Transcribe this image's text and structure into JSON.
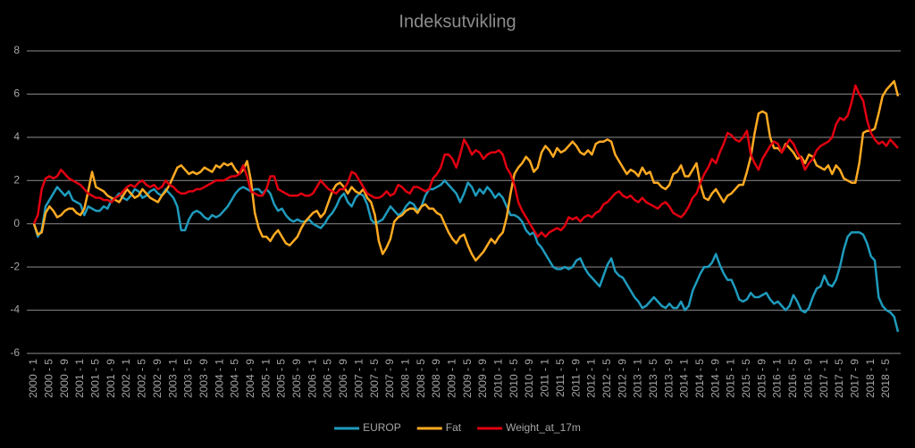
{
  "chart_data": {
    "type": "line",
    "title": "Indeksutvikling",
    "categories": [
      "2000 - 1",
      null,
      null,
      null,
      "2000 - 5",
      null,
      null,
      null,
      "2000 - 9",
      null,
      null,
      null,
      "2001 - 1",
      null,
      null,
      null,
      "2001 - 5",
      null,
      null,
      null,
      "2001 - 9",
      null,
      null,
      null,
      "2002 - 1",
      null,
      null,
      null,
      "2002 - 5",
      null,
      null,
      null,
      "2002 - 9",
      null,
      null,
      null,
      "2003 - 1",
      null,
      null,
      null,
      "2003 - 5",
      null,
      null,
      null,
      "2003 - 9",
      null,
      null,
      null,
      "2004 - 1",
      null,
      null,
      null,
      "2004 - 5",
      null,
      null,
      null,
      "2004 - 9",
      null,
      null,
      null,
      "2005 - 1",
      null,
      null,
      null,
      "2005 - 5",
      null,
      null,
      null,
      "2005 - 9",
      null,
      null,
      null,
      "2006 - 1",
      null,
      null,
      null,
      "2006 - 5",
      null,
      null,
      null,
      "2006 - 9",
      null,
      null,
      null,
      "2007 - 1",
      null,
      null,
      null,
      "2007 - 5",
      null,
      null,
      null,
      "2007 - 9",
      null,
      null,
      null,
      "2008 - 1",
      null,
      null,
      null,
      "2008 - 5",
      null,
      null,
      null,
      "2008 - 9",
      null,
      null,
      null,
      "2009 - 1",
      null,
      null,
      null,
      "2009 - 5",
      null,
      null,
      null,
      "2009 - 9",
      null,
      null,
      null,
      "2010 - 1",
      null,
      null,
      null,
      "2010 - 5",
      null,
      null,
      null,
      "2010 - 9",
      null,
      null,
      null,
      "2011 - 1",
      null,
      null,
      null,
      "2011 - 5",
      null,
      null,
      null,
      "2011 - 9",
      null,
      null,
      null,
      "2012 - 1",
      null,
      null,
      null,
      "2012 - 5",
      null,
      null,
      null,
      "2012 - 9",
      null,
      null,
      null,
      "2013 - 1",
      null,
      null,
      null,
      "2013 - 5",
      null,
      null,
      null,
      "2013 - 9",
      null,
      null,
      null,
      "2014 - 1",
      null,
      null,
      null,
      "2014 - 5",
      null,
      null,
      null,
      "2014 - 9",
      null,
      null,
      null,
      "2015 - 1",
      null,
      null,
      null,
      "2015 - 5",
      null,
      null,
      null,
      "2015 - 9",
      null,
      null,
      null,
      "2016 - 1",
      null,
      null,
      null,
      "2016 - 5",
      null,
      null,
      null,
      "2016 - 9",
      null,
      null,
      null,
      "2017 - 1",
      null,
      null,
      null,
      "2017 - 5",
      null,
      null,
      null,
      "2017 - 9",
      null,
      null,
      null,
      "2018 - 1",
      null,
      null,
      null,
      "2018 - 5",
      null,
      null,
      null
    ],
    "series": [
      {
        "name": "EUROP",
        "color": "#1f9bbd",
        "values": [
          0,
          -0.6,
          -0.3,
          0.8,
          1.1,
          1.4,
          1.7,
          1.5,
          1.3,
          1.5,
          1.1,
          1.0,
          0.9,
          0.4,
          0.8,
          0.7,
          0.6,
          0.6,
          0.8,
          0.7,
          1.1,
          1.2,
          1.4,
          1.2,
          1.1,
          1.3,
          1.6,
          1.5,
          1.2,
          1.3,
          1.5,
          1.6,
          1.4,
          1.3,
          1.6,
          1.4,
          1.2,
          0.8,
          -0.3,
          -0.3,
          0.2,
          0.5,
          0.6,
          0.5,
          0.3,
          0.2,
          0.4,
          0.3,
          0.4,
          0.6,
          0.8,
          1.1,
          1.4,
          1.6,
          1.7,
          1.6,
          1.5,
          1.6,
          1.6,
          1.4,
          1.6,
          1.4,
          0.9,
          0.6,
          0.7,
          0.4,
          0.2,
          0.1,
          0.2,
          0.1,
          0.1,
          0.2,
          0.0,
          -0.1,
          -0.2,
          0.0,
          0.3,
          0.5,
          0.8,
          1.2,
          1.4,
          1.0,
          0.8,
          1.2,
          1.4,
          1.3,
          0.9,
          0.2,
          0.0,
          0.1,
          0.2,
          0.5,
          0.8,
          0.6,
          0.4,
          0.5,
          0.8,
          1.0,
          0.9,
          0.6,
          0.8,
          1.3,
          1.6,
          1.6,
          1.7,
          1.8,
          2.0,
          1.8,
          1.6,
          1.4,
          1.0,
          1.4,
          1.9,
          1.7,
          1.3,
          1.6,
          1.4,
          1.7,
          1.5,
          1.2,
          1.4,
          1.2,
          0.8,
          0.4,
          0.4,
          0.3,
          0.1,
          -0.3,
          -0.5,
          -0.4,
          -0.9,
          -1.1,
          -1.4,
          -1.7,
          -2.0,
          -2.1,
          -2.1,
          -2.0,
          -2.1,
          -2.0,
          -1.7,
          -1.6,
          -2.0,
          -2.3,
          -2.5,
          -2.7,
          -2.9,
          -2.4,
          -1.9,
          -1.6,
          -2.2,
          -2.4,
          -2.5,
          -2.8,
          -3.1,
          -3.4,
          -3.6,
          -3.9,
          -3.8,
          -3.6,
          -3.4,
          -3.6,
          -3.8,
          -3.9,
          -3.7,
          -3.9,
          -3.9,
          -3.6,
          -4.0,
          -3.8,
          -3.1,
          -2.7,
          -2.3,
          -2.0,
          -2.0,
          -1.8,
          -1.4,
          -1.9,
          -2.3,
          -2.6,
          -2.6,
          -3.0,
          -3.5,
          -3.6,
          -3.5,
          -3.2,
          -3.4,
          -3.4,
          -3.3,
          -3.2,
          -3.5,
          -3.7,
          -3.6,
          -3.8,
          -4.0,
          -3.8,
          -3.3,
          -3.6,
          -4.0,
          -4.1,
          -3.9,
          -3.4,
          -3.0,
          -2.9,
          -2.4,
          -2.8,
          -2.9,
          -2.6,
          -2.0,
          -1.2,
          -0.6,
          -0.4,
          -0.4,
          -0.4,
          -0.5,
          -0.9,
          -1.5,
          -1.7,
          -3.4,
          -3.8,
          -4.0,
          -4.1,
          -4.3,
          -5.0
        ]
      },
      {
        "name": "Fat",
        "color": "#ffaa22",
        "values": [
          0,
          -0.5,
          -0.4,
          0.5,
          0.8,
          0.6,
          0.3,
          0.4,
          0.6,
          0.7,
          0.7,
          0.5,
          0.4,
          0.7,
          1.5,
          2.4,
          1.7,
          1.6,
          1.5,
          1.3,
          1.2,
          1.1,
          1.0,
          1.3,
          1.6,
          1.4,
          1.2,
          1.3,
          1.6,
          1.4,
          1.2,
          1.1,
          1.0,
          1.3,
          1.5,
          1.8,
          2.2,
          2.6,
          2.7,
          2.5,
          2.3,
          2.4,
          2.3,
          2.4,
          2.6,
          2.5,
          2.4,
          2.7,
          2.6,
          2.8,
          2.7,
          2.8,
          2.5,
          2.3,
          2.5,
          2.9,
          2.0,
          0.5,
          -0.2,
          -0.6,
          -0.6,
          -0.8,
          -0.5,
          -0.3,
          -0.6,
          -0.9,
          -1.0,
          -0.8,
          -0.6,
          -0.2,
          0.1,
          0.3,
          0.5,
          0.6,
          0.3,
          0.5,
          1.0,
          1.5,
          1.8,
          1.9,
          1.7,
          1.4,
          1.7,
          1.5,
          1.4,
          1.6,
          1.2,
          1.0,
          0.4,
          -0.8,
          -1.4,
          -1.1,
          -0.7,
          0.1,
          0.3,
          0.4,
          0.6,
          0.7,
          0.7,
          0.5,
          0.8,
          0.9,
          0.7,
          0.7,
          0.5,
          0.4,
          0.0,
          -0.4,
          -0.7,
          -0.9,
          -0.6,
          -0.5,
          -1.0,
          -1.4,
          -1.7,
          -1.5,
          -1.3,
          -1.0,
          -0.7,
          -0.9,
          -0.6,
          -0.4,
          0.3,
          1.4,
          2.3,
          2.6,
          2.8,
          3.1,
          2.9,
          2.4,
          2.6,
          3.3,
          3.6,
          3.4,
          3.1,
          3.5,
          3.3,
          3.4,
          3.6,
          3.8,
          3.6,
          3.3,
          3.2,
          3.4,
          3.2,
          3.7,
          3.8,
          3.8,
          3.9,
          3.8,
          3.2,
          2.9,
          2.6,
          2.3,
          2.5,
          2.4,
          2.2,
          2.6,
          2.3,
          2.4,
          1.9,
          1.9,
          1.7,
          1.6,
          1.8,
          2.3,
          2.4,
          2.7,
          2.2,
          2.2,
          2.5,
          2.8,
          1.8,
          1.2,
          1.1,
          1.4,
          1.6,
          1.3,
          1.0,
          1.3,
          1.4,
          1.6,
          1.8,
          1.8,
          2.4,
          3.1,
          4.2,
          5.1,
          5.2,
          5.1,
          4.0,
          3.5,
          3.5,
          3.3,
          3.7,
          3.5,
          3.3,
          3.0,
          3.1,
          2.8,
          3.2,
          3.1,
          2.7,
          2.6,
          2.5,
          2.7,
          2.3,
          2.7,
          2.5,
          2.1,
          2.0,
          1.9,
          1.9,
          2.8,
          4.2,
          4.3,
          4.3,
          4.4,
          5.1,
          5.9,
          6.2,
          6.4,
          6.6,
          5.9
        ]
      },
      {
        "name": "Weight_at_17m",
        "color": "#e00010",
        "values": [
          0,
          0.4,
          1.6,
          2.1,
          2.2,
          2.1,
          2.2,
          2.5,
          2.3,
          2.1,
          2.0,
          1.9,
          1.8,
          1.6,
          1.4,
          1.3,
          1.2,
          1.2,
          1.1,
          1.1,
          1.0,
          1.2,
          1.3,
          1.5,
          1.7,
          1.8,
          1.7,
          1.9,
          2.0,
          1.8,
          1.7,
          1.8,
          1.6,
          1.7,
          2.0,
          1.8,
          1.7,
          1.5,
          1.4,
          1.4,
          1.5,
          1.5,
          1.6,
          1.6,
          1.7,
          1.8,
          1.9,
          2.0,
          2.0,
          2.0,
          2.1,
          2.2,
          2.2,
          2.3,
          2.7,
          2.2,
          1.5,
          1.4,
          1.3,
          1.3,
          1.6,
          2.2,
          2.2,
          1.6,
          1.5,
          1.4,
          1.3,
          1.3,
          1.3,
          1.4,
          1.3,
          1.3,
          1.4,
          1.7,
          2.0,
          1.8,
          1.6,
          1.5,
          1.4,
          1.6,
          1.6,
          1.9,
          2.4,
          2.3,
          2.0,
          1.7,
          1.4,
          1.3,
          1.2,
          1.2,
          1.3,
          1.5,
          1.3,
          1.4,
          1.8,
          1.7,
          1.5,
          1.4,
          1.7,
          1.7,
          1.6,
          1.5,
          1.6,
          2.1,
          2.3,
          2.6,
          3.2,
          3.2,
          3.0,
          2.6,
          3.2,
          3.9,
          3.6,
          3.2,
          3.4,
          3.3,
          3.0,
          3.2,
          3.3,
          3.3,
          3.4,
          3.2,
          2.6,
          2.3,
          1.8,
          1.0,
          0.6,
          0.3,
          0.0,
          -0.3,
          -0.6,
          -0.4,
          -0.6,
          -0.4,
          -0.3,
          -0.2,
          -0.3,
          -0.1,
          0.3,
          0.2,
          0.3,
          0.1,
          0.3,
          0.4,
          0.3,
          0.5,
          0.6,
          0.9,
          1.0,
          1.2,
          1.4,
          1.5,
          1.3,
          1.2,
          1.3,
          1.1,
          1.0,
          1.2,
          1.0,
          0.9,
          0.8,
          0.7,
          0.9,
          1.0,
          0.8,
          0.5,
          0.4,
          0.3,
          0.5,
          0.8,
          1.2,
          1.4,
          1.9,
          2.3,
          2.6,
          3.0,
          2.8,
          3.3,
          3.7,
          4.2,
          4.1,
          3.9,
          3.8,
          4.0,
          4.3,
          3.2,
          2.8,
          2.5,
          3.0,
          3.3,
          3.6,
          3.8,
          3.7,
          3.3,
          3.6,
          3.9,
          3.7,
          3.3,
          3.0,
          2.5,
          2.8,
          3.0,
          3.4,
          3.6,
          3.7,
          3.8,
          4.0,
          4.6,
          4.9,
          4.8,
          5.0,
          5.6,
          6.4,
          6.0,
          5.7,
          4.8,
          4.2,
          3.9,
          3.7,
          3.8,
          3.6,
          3.9,
          3.7,
          3.5
        ]
      }
    ],
    "ylim": [
      -6,
      8
    ],
    "yticks": [
      -6,
      -4,
      -2,
      0,
      2,
      4,
      6,
      8
    ],
    "grid": true,
    "legend": "bottom"
  }
}
